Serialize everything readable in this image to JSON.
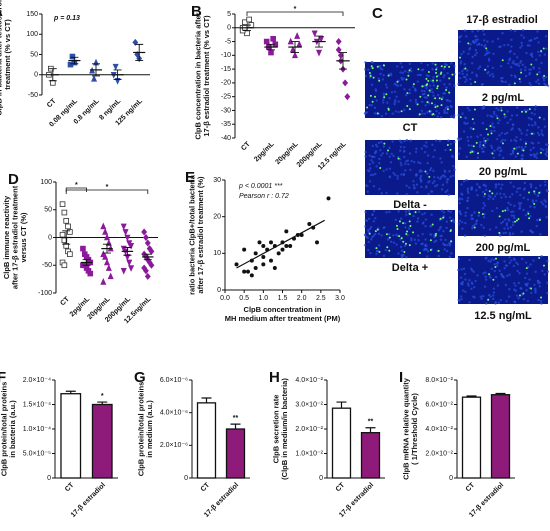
{
  "chart_data": [
    {
      "type": "dotplot",
      "panel": "A",
      "ylabel": [
        "ClpB in bacteria after testosterone",
        "treatment (% vs CT)"
      ],
      "annotation": "p = 0.13",
      "categories": [
        "CT",
        "0.08 ng/mL",
        "0.8 ng/mL",
        "8 ng/mL",
        "125 ng/mL"
      ],
      "points": [
        [
          0,
          15,
          -20
        ],
        [
          25,
          45,
          30
        ],
        [
          10,
          -10,
          30
        ],
        [
          0,
          20,
          -15
        ],
        [
          80,
          50,
          40
        ]
      ],
      "means": [
        0,
        35,
        12,
        0,
        55
      ],
      "sems": [
        15,
        8,
        15,
        12,
        20
      ],
      "colors": [
        "#333333",
        "#2e4fa8",
        "#2e4fa8",
        "#2e4fa8",
        "#2e4fa8"
      ],
      "markers": [
        "square-open",
        "square",
        "triangle",
        "triangle-down",
        "diamond"
      ],
      "ylim": [
        -50,
        150
      ],
      "yticks": [
        -50,
        0,
        50,
        100,
        150
      ]
    },
    {
      "type": "dotplot",
      "panel": "B",
      "ylabel": [
        "ClpB concentration in bacteria after",
        "17-β estradiol treatment (% vs CT)"
      ],
      "significance": [
        "*"
      ],
      "categories": [
        "CT",
        "2pg/mL",
        "20pg/mL",
        "200pg/mL",
        "12.5 ng/mL"
      ],
      "points": [
        [
          0,
          2,
          -2,
          3,
          1,
          -1,
          0
        ],
        [
          -5,
          -7,
          -9,
          -4,
          -6
        ],
        [
          -5,
          -8,
          -10,
          -3,
          -6
        ],
        [
          -2,
          -5,
          -9,
          -4
        ],
        [
          -5,
          -10,
          -15,
          -20,
          -25,
          -8,
          -12
        ]
      ],
      "means": [
        0,
        -7,
        -7,
        -5,
        -12
      ],
      "sems": [
        1,
        1,
        2,
        2,
        3
      ],
      "colors": [
        "#333333",
        "#8b1a9b",
        "#8b1a9b",
        "#8b1a9b",
        "#8b1a9b"
      ],
      "markers": [
        "square-open",
        "square",
        "triangle",
        "triangle-down",
        "diamond"
      ],
      "ylim": [
        -40,
        5
      ],
      "yticks": [
        -40,
        -35,
        -30,
        -25,
        -20,
        -15,
        -10,
        -5,
        0,
        5
      ]
    },
    {
      "type": "dotplot",
      "panel": "D",
      "ylabel": [
        "ClpB immune reactivity",
        "after 17-β estradiol treatment",
        "versus CT (%)"
      ],
      "significance": [
        "*",
        "*"
      ],
      "categories": [
        "CT",
        "2pg/mL",
        "20pg/mL",
        "200pg/mL",
        "12.5ng/mL"
      ],
      "points": [
        [
          60,
          45,
          30,
          20,
          10,
          5,
          -5,
          -15,
          -25,
          -30,
          -45,
          -50
        ],
        [
          -20,
          -30,
          -35,
          -40,
          -45,
          -50,
          -50,
          -55,
          -60,
          -65
        ],
        [
          20,
          10,
          0,
          -10,
          -20,
          -30,
          -35,
          -45,
          -55,
          -70,
          -80
        ],
        [
          20,
          10,
          0,
          -10,
          -15,
          -20,
          -25,
          -35,
          -45,
          -55,
          -60
        ],
        [
          10,
          0,
          -10,
          -20,
          -25,
          -30,
          -35,
          -40,
          -45,
          -50,
          -55,
          -60,
          -70
        ]
      ],
      "means": [
        0,
        -45,
        -20,
        -25,
        -35
      ],
      "sems": [
        12,
        5,
        8,
        7,
        5
      ],
      "colors": [
        "#333333",
        "#8b1a9b",
        "#8b1a9b",
        "#8b1a9b",
        "#8b1a9b"
      ],
      "markers": [
        "square-open",
        "square",
        "triangle",
        "triangle-down",
        "diamond"
      ],
      "ylim": [
        -100,
        100
      ],
      "yticks": [
        -100,
        -50,
        0,
        50,
        100
      ]
    },
    {
      "type": "scatter",
      "panel": "E",
      "xlabel": [
        "ClpB concentration in",
        "MH medium after treatment (PM)"
      ],
      "ylabel": [
        "ratio bacteria ClpB+/total bacteria",
        "after 17-β estradiol treatment (%)"
      ],
      "annotations": [
        "p < 0.0001 ***",
        "Pearson r : 0.72"
      ],
      "x": [
        0.3,
        0.5,
        0.6,
        0.7,
        0.8,
        0.8,
        0.9,
        1.0,
        1.0,
        1.1,
        1.2,
        1.2,
        1.3,
        1.4,
        1.5,
        1.5,
        1.6,
        1.6,
        1.7,
        1.8,
        2.0,
        2.2,
        2.3,
        2.4,
        2.7,
        0.5,
        0.7,
        1.0,
        1.3,
        1.9
      ],
      "y": [
        7,
        11,
        5,
        8,
        10,
        6,
        13,
        9,
        12,
        11,
        13,
        8,
        12,
        10,
        11,
        13,
        12,
        16,
        12,
        14,
        15,
        18,
        17,
        13,
        25,
        5,
        4,
        7,
        6,
        15
      ],
      "fit": {
        "x": [
          0.3,
          2.6
        ],
        "y": [
          6,
          19
        ]
      },
      "color": "#111111",
      "xlim": [
        0,
        3
      ],
      "xticks": [
        {
          "value": 0,
          "label": "0.0"
        },
        0.5,
        {
          "value": 1,
          "label": "1.0"
        },
        1.5,
        {
          "value": 2,
          "label": "2.0"
        },
        2.5,
        {
          "value": 3,
          "label": "3.0"
        }
      ],
      "ylim": [
        0,
        30
      ],
      "yticks": [
        0,
        10,
        20,
        30
      ]
    },
    {
      "type": "bar",
      "panel": "F",
      "ylabel": [
        "ClpB protein/total proteins",
        "in bacteria (a.u.)"
      ],
      "significance": "*",
      "categories": [
        "CT",
        "17-β estradiol"
      ],
      "values": [
        0.000172,
        0.00015
      ],
      "errors": [
        5e-06,
        5e-06
      ],
      "colors": [
        "#ffffff",
        "#8e1a7a"
      ],
      "ylim": [
        0,
        0.0002
      ],
      "yticks": [
        0,
        {
          "value": 5e-05,
          "label": "5.0×10⁻⁵"
        },
        {
          "value": 0.0001,
          "label": "1.0×10⁻⁴"
        },
        {
          "value": 0.00015,
          "label": "1.5×10⁻⁴"
        },
        {
          "value": 0.0002,
          "label": "2.0×10⁻⁴"
        }
      ]
    },
    {
      "type": "bar",
      "panel": "G",
      "ylabel": [
        "ClpB protein/total proteins",
        "in medium (a.u.)"
      ],
      "significance": "**",
      "categories": [
        "CT",
        "17-β estradiol"
      ],
      "values": [
        4.6e-06,
        3e-06
      ],
      "errors": [
        3e-07,
        3e-07
      ],
      "colors": [
        "#ffffff",
        "#8e1a7a"
      ],
      "ylim": [
        0,
        6e-06
      ],
      "yticks": [
        0,
        {
          "value": 2e-06,
          "label": "2.0×10⁻⁶"
        },
        {
          "value": 4e-06,
          "label": "4.0×10⁻⁶"
        },
        {
          "value": 6e-06,
          "label": "6.0×10⁻⁶"
        }
      ]
    },
    {
      "type": "bar",
      "panel": "H",
      "ylabel": [
        "ClpB secretion rate",
        "(ClpB in medium/in bacteria)"
      ],
      "significance": "**",
      "categories": [
        "CT",
        "17-β estradiol"
      ],
      "values": [
        0.0285,
        0.0185
      ],
      "errors": [
        0.0025,
        0.002
      ],
      "colors": [
        "#ffffff",
        "#8e1a7a"
      ],
      "ylim": [
        0,
        0.04
      ],
      "yticks": [
        0,
        {
          "value": 0.01,
          "label": "1.0×10⁻²"
        },
        {
          "value": 0.02,
          "label": "2.0×10⁻²"
        },
        {
          "value": 0.03,
          "label": "3.0×10⁻²"
        },
        {
          "value": 0.04,
          "label": "4.0×10⁻²"
        }
      ]
    },
    {
      "type": "bar",
      "panel": "I",
      "ylabel": [
        "ClpB mRNA relative quantity",
        "( 1/Threshold Cycle)"
      ],
      "categories": [
        "CT",
        "17-β estradiol"
      ],
      "values": [
        0.066,
        0.068
      ],
      "errors": [
        0.001,
        0.001
      ],
      "colors": [
        "#ffffff",
        "#8e1a7a"
      ],
      "ylim": [
        0,
        0.08
      ],
      "yticks": [
        0,
        {
          "value": 0.02,
          "label": "2.0×10⁻²"
        },
        {
          "value": 0.04,
          "label": "4.0×10⁻²"
        },
        {
          "value": 0.06,
          "label": "6.0×10⁻²"
        },
        {
          "value": 0.08,
          "label": "8.0×10⁻²"
        }
      ]
    }
  ],
  "micrographs": {
    "panel": "C",
    "column_title": "17-β estradiol",
    "left": [
      "CT",
      "Delta -",
      "Delta +"
    ],
    "right": [
      "2 pg/mL",
      "20 pg/mL",
      "200 pg/mL",
      "12.5 ng/mL"
    ]
  }
}
